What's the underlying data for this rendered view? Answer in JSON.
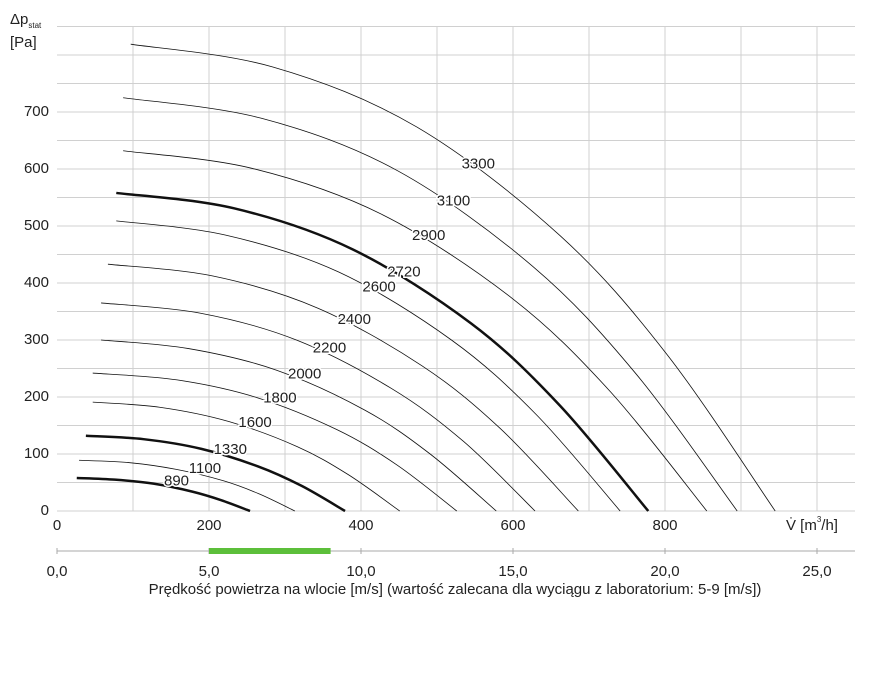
{
  "chart_data": {
    "type": "line",
    "ylabel": [
      "Δp",
      "stat"
    ],
    "yunit": "[Pa]",
    "xlabel": [
      "V̇ [m",
      "3",
      "/h]"
    ],
    "xlim": [
      0,
      1050
    ],
    "xticks": [
      0,
      200,
      400,
      600,
      800
    ],
    "x_minor_ticks": [
      100,
      300,
      500,
      700,
      900,
      1000
    ],
    "ylim": [
      0,
      850
    ],
    "yticks": [
      0,
      100,
      200,
      300,
      400,
      500,
      600,
      700
    ],
    "y_minor_ticks": [
      50,
      150,
      250,
      350,
      450,
      550,
      650,
      750,
      800,
      850
    ],
    "grid": true,
    "series": [
      {
        "name": "890",
        "color": "#111111",
        "width": 2.5,
        "x": [
          26,
          76,
          127,
          178,
          216,
          254
        ],
        "values": [
          58,
          55,
          48,
          34,
          19,
          0
        ]
      },
      {
        "name": "1100",
        "color": "#111111",
        "width": 0.8,
        "x": [
          29,
          94,
          157,
          219,
          266,
          313
        ],
        "values": [
          89,
          85,
          73,
          53,
          30,
          0
        ]
      },
      {
        "name": "1330",
        "color": "#111111",
        "width": 2.5,
        "x": [
          38,
          114,
          190,
          265,
          322,
          379
        ],
        "values": [
          132,
          126,
          109,
          78,
          44,
          0
        ]
      },
      {
        "name": "1600",
        "color": "#111111",
        "width": 0.8,
        "x": [
          47,
          135,
          226,
          316,
          383,
          451
        ],
        "values": [
          191,
          182,
          157,
          113,
          64,
          0
        ]
      },
      {
        "name": "1800",
        "color": "#111111",
        "width": 0.8,
        "x": [
          47,
          158,
          263,
          368,
          447,
          526
        ],
        "values": [
          242,
          230,
          199,
          143,
          81,
          0
        ]
      },
      {
        "name": "2000",
        "color": "#111111",
        "width": 0.8,
        "x": [
          58,
          173,
          289,
          405,
          491,
          578
        ],
        "values": [
          300,
          285,
          247,
          177,
          100,
          0
        ]
      },
      {
        "name": "2200",
        "color": "#111111",
        "width": 0.8,
        "x": [
          58,
          189,
          315,
          440,
          535,
          629
        ],
        "values": [
          365,
          347,
          300,
          215,
          122,
          0
        ]
      },
      {
        "name": "2400",
        "color": "#111111",
        "width": 0.8,
        "x": [
          67,
          206,
          343,
          480,
          583,
          686
        ],
        "values": [
          433,
          412,
          356,
          255,
          145,
          0
        ]
      },
      {
        "name": "2600",
        "color": "#111111",
        "width": 0.8,
        "x": [
          78,
          222,
          371,
          519,
          630,
          741
        ],
        "values": [
          509,
          484,
          419,
          300,
          170,
          0
        ]
      },
      {
        "name": "2720",
        "color": "#111111",
        "width": 2.5,
        "x": [
          78,
          233,
          389,
          545,
          661,
          778
        ],
        "values": [
          558,
          531,
          459,
          329,
          186,
          0
        ]
      },
      {
        "name": "2900",
        "color": "#111111",
        "width": 0.8,
        "x": [
          87,
          257,
          428,
          599,
          727,
          855
        ],
        "values": [
          632,
          601,
          520,
          373,
          211,
          0
        ]
      },
      {
        "name": "3100",
        "color": "#111111",
        "width": 0.8,
        "x": [
          87,
          269,
          448,
          627,
          761,
          895
        ],
        "values": [
          725,
          689,
          597,
          428,
          242,
          0
        ]
      },
      {
        "name": "3300",
        "color": "#111111",
        "width": 0.8,
        "x": [
          97,
          284,
          473,
          662,
          803,
          945
        ],
        "values": [
          819,
          779,
          674,
          483,
          274,
          0
        ]
      }
    ],
    "x2lim": [
      0,
      26.25
    ],
    "x2ticks": [
      {
        "value": 0,
        "label": "0,0"
      },
      {
        "value": 5,
        "label": "5,0"
      },
      {
        "value": 10,
        "label": "10,0"
      },
      {
        "value": 15,
        "label": "15,0"
      },
      {
        "value": 20,
        "label": "20,0"
      },
      {
        "value": 25,
        "label": "25,0"
      }
    ],
    "x2label": "Prędkość powietrza na wlocie [m/s] (wartość zalecana dla wyciągu z laboratorium: 5-9 [m/s])",
    "recommended_range": [
      5,
      9
    ],
    "recommended_color": "#5cbf3a"
  }
}
